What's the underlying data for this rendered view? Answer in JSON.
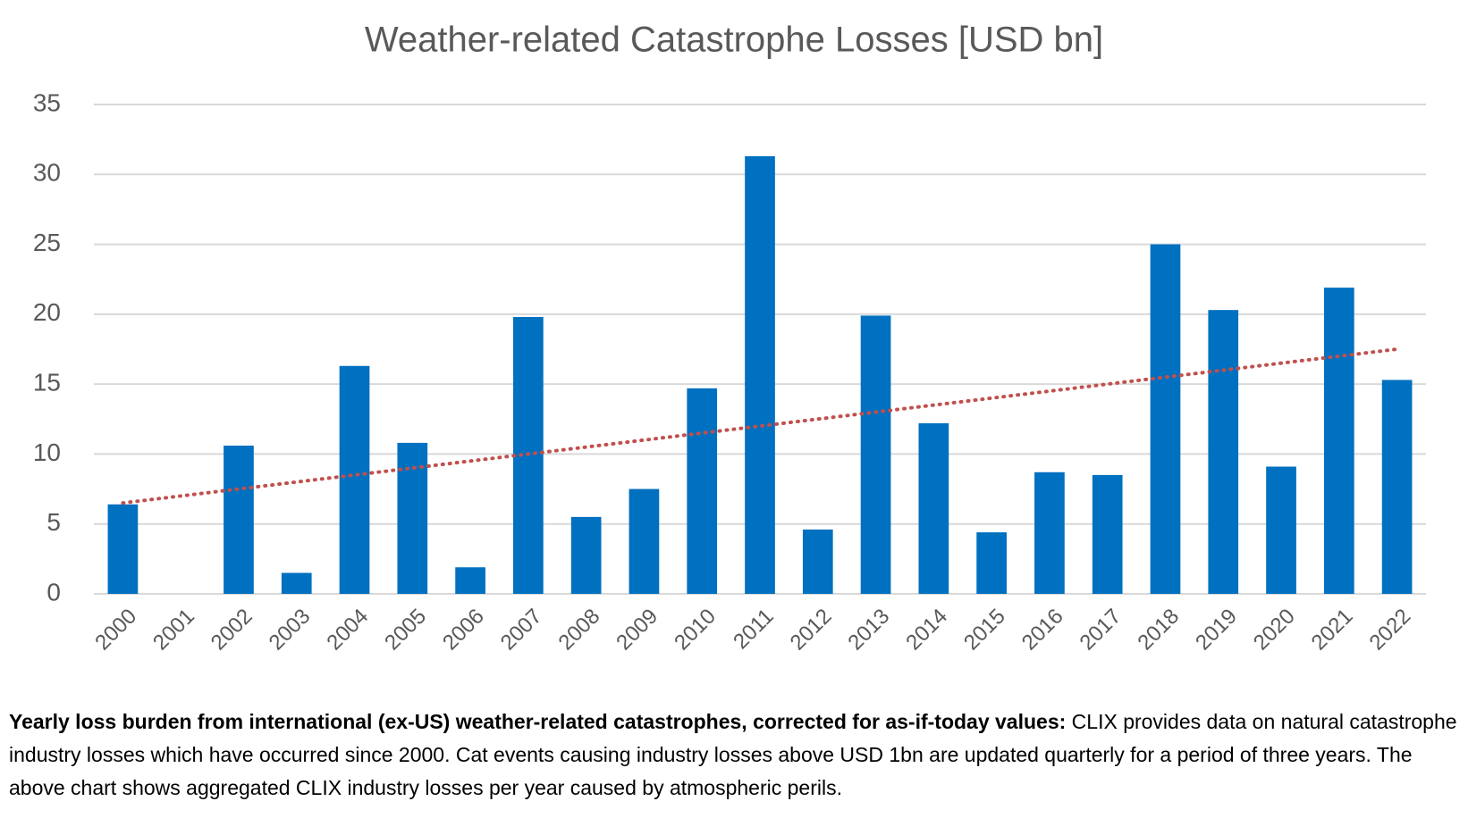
{
  "chart_data": {
    "type": "bar",
    "title": "Weather-related Catastrophe Losses [USD bn]",
    "categories": [
      "2000",
      "2001",
      "2002",
      "2003",
      "2004",
      "2005",
      "2006",
      "2007",
      "2008",
      "2009",
      "2010",
      "2011",
      "2012",
      "2013",
      "2014",
      "2015",
      "2016",
      "2017",
      "2018",
      "2019",
      "2020",
      "2021",
      "2022"
    ],
    "values": [
      6.4,
      0,
      10.6,
      1.5,
      16.3,
      10.8,
      1.9,
      19.8,
      5.5,
      7.5,
      14.7,
      31.3,
      4.6,
      19.9,
      12.2,
      4.4,
      8.7,
      8.5,
      25.0,
      20.3,
      9.1,
      21.9,
      15.3
    ],
    "color": "#0070c0",
    "trendline": {
      "start": 6.5,
      "end": 17.5,
      "color": "#c0504d"
    },
    "ylim": [
      0,
      35
    ],
    "yticks": [
      0,
      5,
      10,
      15,
      20,
      25,
      30,
      35
    ],
    "grid": true
  },
  "caption": {
    "bold": "Yearly loss burden from international (ex-US) weather-related catastrophes, corrected for as-if-today values:",
    "text": "CLIX provides data on natural catastrophe industry losses which have occurred since 2000. Cat events causing industry losses above USD 1bn are updated quarterly for a period of three years. The above chart shows aggregated CLIX industry losses per year caused by atmospheric perils."
  }
}
